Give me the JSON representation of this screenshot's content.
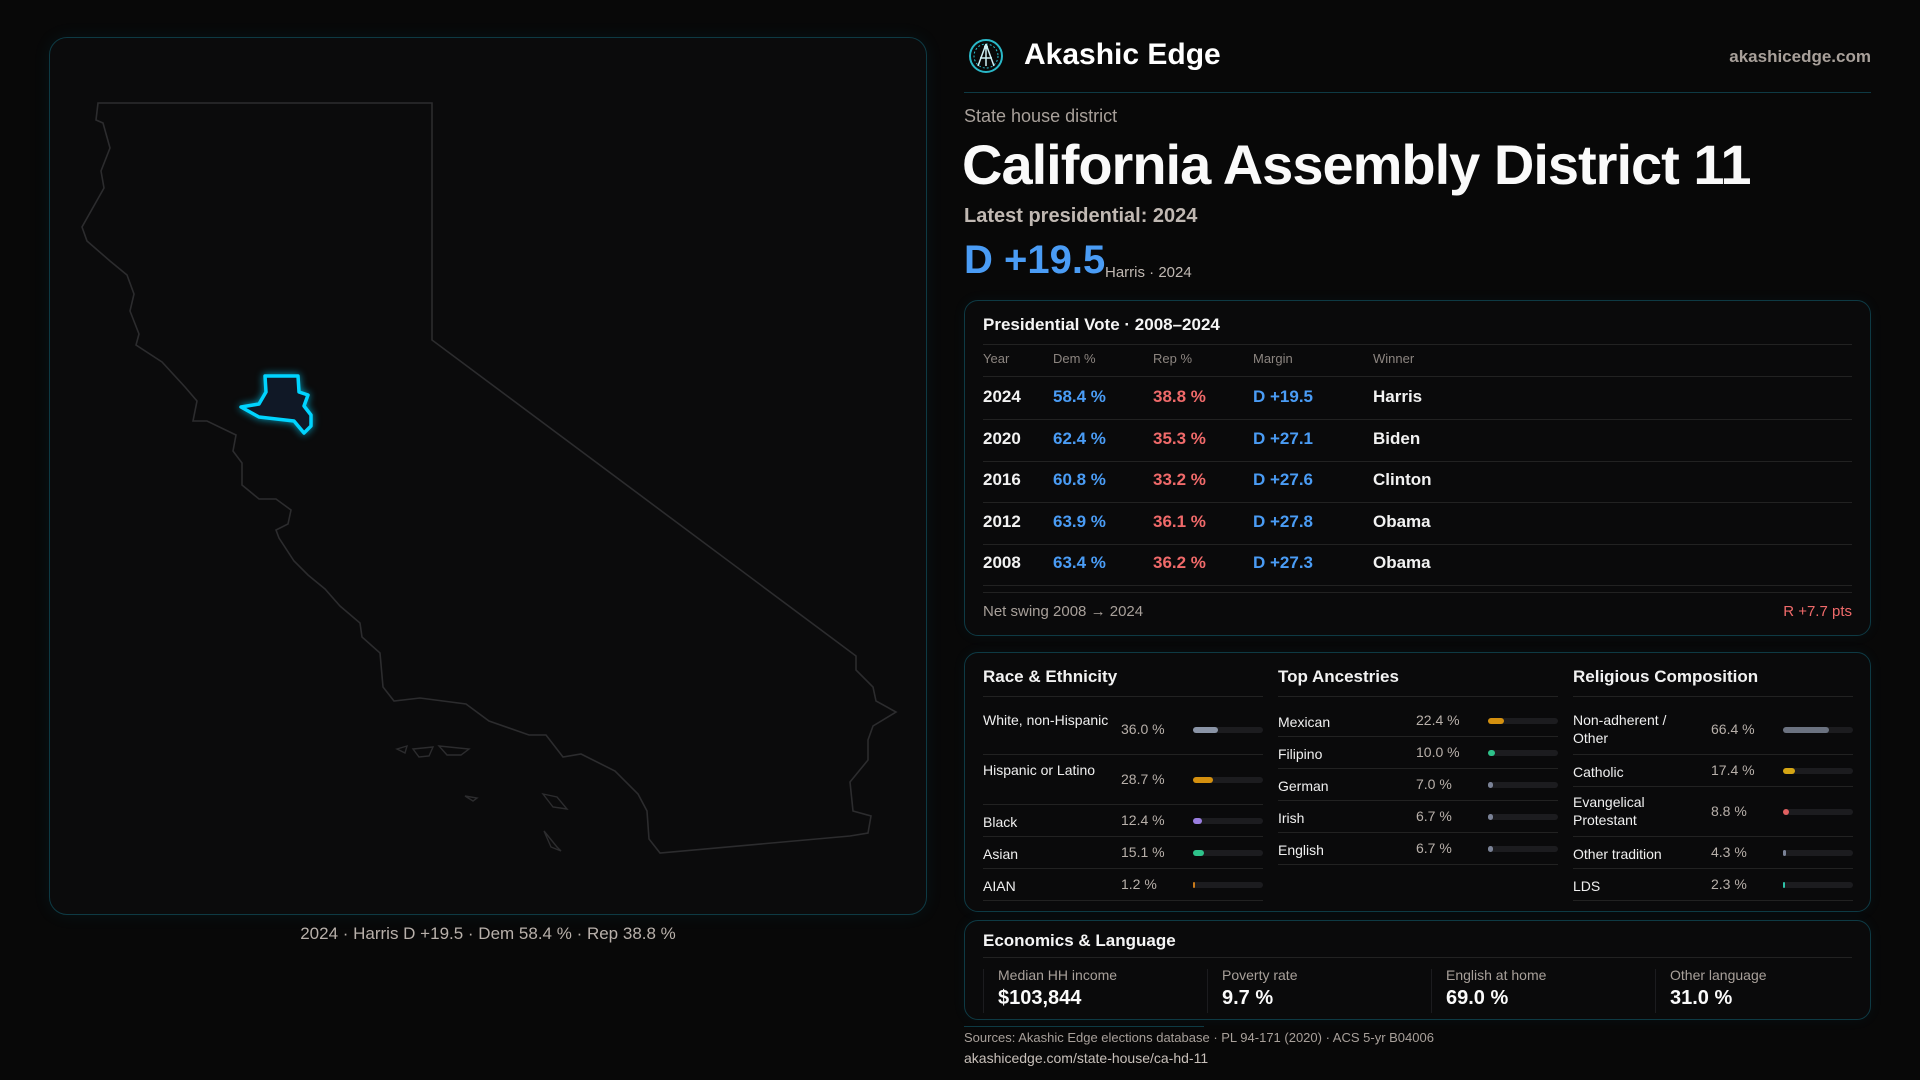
{
  "header": {
    "brand": "Akashic Edge",
    "site": "akashicedge.com",
    "logo_icon": "akashic-edge-logo"
  },
  "district": {
    "kicker": "State house district",
    "title": "California Assembly District 11",
    "latest_label": "Latest presidential: 2024",
    "margin": "D +19.5",
    "margin_sub": "Harris · 2024",
    "accent": "#00d4ff"
  },
  "map": {
    "caption": "2024 · Harris D +19.5 · Dem 58.4 % · Rep 38.8 %"
  },
  "presidential": {
    "title": "Presidential Vote · 2008–2024",
    "columns": [
      "Year",
      "Dem %",
      "Rep %",
      "Margin",
      "Winner"
    ],
    "rows": [
      [
        "2024",
        "58.4 %",
        "38.8 %",
        "D +19.5",
        "Harris"
      ],
      [
        "2020",
        "62.4 %",
        "35.3 %",
        "D +27.1",
        "Biden"
      ],
      [
        "2016",
        "60.8 %",
        "33.2 %",
        "D +27.6",
        "Clinton"
      ],
      [
        "2012",
        "63.9 %",
        "36.1 %",
        "D +27.8",
        "Obama"
      ],
      [
        "2008",
        "63.4 %",
        "36.2 %",
        "D +27.3",
        "Obama"
      ]
    ],
    "swing_label": "Net swing 2008 → 2024",
    "swing_value": "R +7.7 pts",
    "colors": {
      "dem": "#4a9cf5",
      "rep": "#f06a6a"
    }
  },
  "demographics": [
    {
      "title": "Race & Ethnicity",
      "items": [
        {
          "label": "White, non-Hispanic",
          "pct": "36.0 %",
          "value": 36.0,
          "color": "#8a94a6"
        },
        {
          "label": "Hispanic or Latino",
          "pct": "28.7 %",
          "value": 28.7,
          "color": "#d4900f"
        },
        {
          "label": "Black",
          "pct": "12.4 %",
          "value": 12.4,
          "color": "#9a7ee0"
        },
        {
          "label": "Asian",
          "pct": "15.1 %",
          "value": 15.1,
          "color": "#2ec28a"
        },
        {
          "label": "AIAN",
          "pct": "1.2 %",
          "value": 1.2,
          "color": "#c97a1a"
        }
      ]
    },
    {
      "title": "Top Ancestries",
      "items": [
        {
          "label": "Mexican",
          "pct": "22.4 %",
          "value": 22.4,
          "color": "#d4900f"
        },
        {
          "label": "Filipino",
          "pct": "10.0 %",
          "value": 10.0,
          "color": "#2ec28a"
        },
        {
          "label": "German",
          "pct": "7.0 %",
          "value": 7.0,
          "color": "#7a8296"
        },
        {
          "label": "Irish",
          "pct": "6.7 %",
          "value": 6.7,
          "color": "#7a8296"
        },
        {
          "label": "English",
          "pct": "6.7 %",
          "value": 6.7,
          "color": "#7a8296"
        }
      ]
    },
    {
      "title": "Religious Composition",
      "items": [
        {
          "label": "Non-adherent / Other",
          "pct": "66.4 %",
          "value": 66.4,
          "color": "#6b7280"
        },
        {
          "label": "Catholic",
          "pct": "17.4 %",
          "value": 17.4,
          "color": "#d4a514"
        },
        {
          "label": "Evangelical Protestant",
          "pct": "8.8 %",
          "value": 8.8,
          "color": "#e06060"
        },
        {
          "label": "Other tradition",
          "pct": "4.3 %",
          "value": 4.3,
          "color": "#7a8296"
        },
        {
          "label": "LDS",
          "pct": "2.3 %",
          "value": 2.3,
          "color": "#2ec2a8"
        }
      ]
    }
  ],
  "economics": {
    "title": "Economics & Language",
    "stats": [
      {
        "label": "Median HH income",
        "value": "$103,844"
      },
      {
        "label": "Poverty rate",
        "value": "9.7 %"
      },
      {
        "label": "English at home",
        "value": "69.0 %"
      },
      {
        "label": "Other language",
        "value": "31.0 %"
      }
    ]
  },
  "footer": {
    "sources": "Sources: Akashic Edge elections database · PL 94-171 (2020) · ACS 5-yr B04006",
    "permalink": "akashicedge.com/state-house/ca-hd-11"
  }
}
